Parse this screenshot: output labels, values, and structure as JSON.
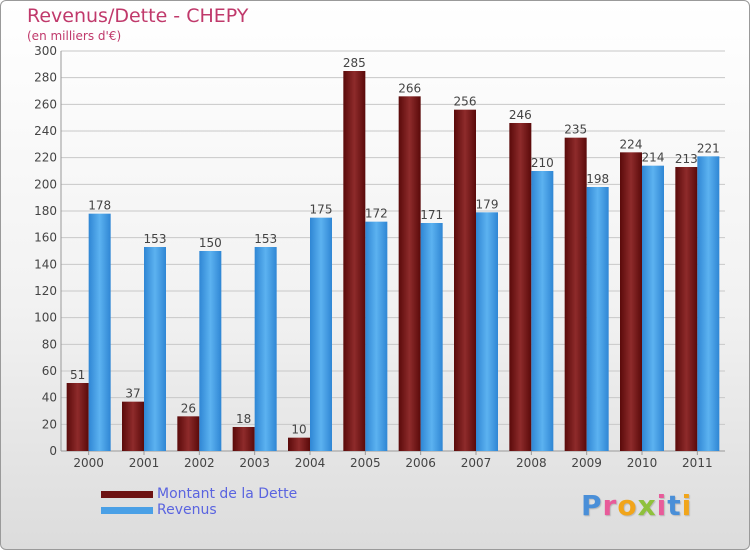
{
  "title": "Revenus/Dette - CHEPY",
  "subtitle": "(en milliers d'€)",
  "logo": {
    "text": "Proxiti",
    "letters": [
      {
        "ch": "P",
        "color": "#4a8fd8"
      },
      {
        "ch": "r",
        "color": "#e85b9a"
      },
      {
        "ch": "o",
        "color": "#f1a51a"
      },
      {
        "ch": "x",
        "color": "#8fc13c"
      },
      {
        "ch": "i",
        "color": "#e85b9a"
      },
      {
        "ch": "t",
        "color": "#4a8fd8"
      },
      {
        "ch": "i",
        "color": "#f1a51a"
      }
    ]
  },
  "legend": [
    {
      "label": "Montant de la Dette",
      "color": "#6e1212"
    },
    {
      "label": "Revenus",
      "color": "#4aa0e6"
    }
  ],
  "chart_data": {
    "type": "bar",
    "title": "Revenus/Dette - CHEPY",
    "subtitle": "(en milliers d'€)",
    "categories": [
      "2000",
      "2001",
      "2002",
      "2003",
      "2004",
      "2005",
      "2006",
      "2007",
      "2008",
      "2009",
      "2010",
      "2011"
    ],
    "series": [
      {
        "name": "Montant de la Dette",
        "color": "#7a1a1a",
        "values": [
          51,
          37,
          26,
          18,
          10,
          285,
          266,
          256,
          246,
          235,
          224,
          213
        ]
      },
      {
        "name": "Revenus",
        "color": "#4aa0e6",
        "values": [
          178,
          153,
          150,
          153,
          175,
          172,
          171,
          179,
          210,
          198,
          214,
          221
        ]
      }
    ],
    "ylim": [
      0,
      300
    ],
    "yticks": [
      0,
      20,
      40,
      60,
      80,
      100,
      120,
      140,
      160,
      180,
      200,
      220,
      240,
      260,
      280,
      300
    ],
    "grid": true,
    "legend_position": "bottom-left"
  }
}
